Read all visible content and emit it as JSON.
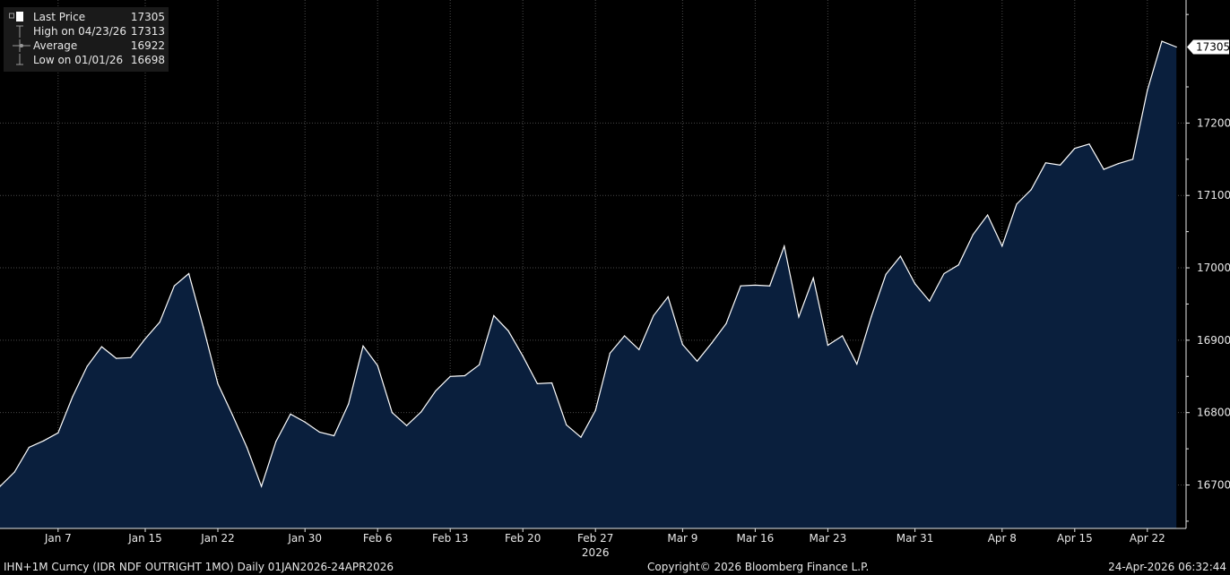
{
  "chart_data": {
    "type": "area",
    "title": "",
    "xlabel": "",
    "ylabel": "",
    "ylim": [
      16640,
      17370
    ],
    "y_ticks": [
      16700,
      16800,
      16900,
      17000,
      17100,
      17200
    ],
    "y_tick_labels": [
      "16700",
      "16800",
      "16900",
      "17000",
      "17100",
      "17200"
    ],
    "x_tick_labels": [
      "Jan 7",
      "Jan 15",
      "Jan 22",
      "Jan 30",
      "Feb 6",
      "Feb 13",
      "Feb 20",
      "Feb 27",
      "Mar 9",
      "Mar 16",
      "Mar 23",
      "Mar 31",
      "Apr 8",
      "Apr 15",
      "Apr 22"
    ],
    "x_tick_index": [
      4,
      10,
      15,
      21,
      26,
      31,
      36,
      41,
      47,
      52,
      57,
      63,
      69,
      74,
      79
    ],
    "year_label": "2026",
    "year_label_index": 41,
    "series": [
      {
        "name": "Last Price",
        "color": "#ffffff",
        "fill": "#0a1f3d",
        "values": [
          16698,
          16718,
          16752,
          16761,
          16772,
          16822,
          16864,
          16891,
          16875,
          16876,
          16902,
          16925,
          16975,
          16992,
          16918,
          16840,
          16797,
          16752,
          16698,
          16760,
          16798,
          16787,
          16773,
          16768,
          16812,
          16892,
          16865,
          16800,
          16782,
          16801,
          16830,
          16850,
          16851,
          16866,
          16934,
          16913,
          16878,
          16840,
          16841,
          16783,
          16766,
          16803,
          16882,
          16906,
          16887,
          16934,
          16960,
          16894,
          16871,
          16896,
          16923,
          16975,
          16976,
          16975,
          17030,
          16932,
          16986,
          16893,
          16906,
          16867,
          16933,
          16991,
          17016,
          16978,
          16954,
          16992,
          17004,
          17046,
          17073,
          17030,
          17088,
          17108,
          17145,
          17142,
          17165,
          17171,
          17136,
          17144,
          17150,
          17245,
          17313,
          17305
        ]
      }
    ],
    "last_value_label": "17305",
    "legend": [
      {
        "label": "Last Price",
        "value": "17305",
        "icon": "filled-square-icon"
      },
      {
        "label": "High on 04/23/26",
        "value": "17313",
        "icon": "high-marker-icon"
      },
      {
        "label": "Average",
        "value": "16922",
        "icon": "average-marker-icon"
      },
      {
        "label": "Low on 01/01/26",
        "value": "16698",
        "icon": "low-marker-icon"
      }
    ],
    "grid": true,
    "legend_position": "top-left",
    "y_axis_position": "right"
  },
  "footer": {
    "left": "IHN+1M Curncy (IDR NDF OUTRIGHT   1MO) Daily 01JAN2026-24APR2026",
    "center": "Copyright© 2026 Bloomberg Finance L.P.",
    "right": "24-Apr-2026 06:32:44"
  },
  "colors": {
    "background": "#000000",
    "line": "#ffffff",
    "area": "#0a1f3d",
    "grid": "#4a4a4a",
    "text": "#e8e8e8",
    "legend_bg": "#1a1a1a"
  }
}
